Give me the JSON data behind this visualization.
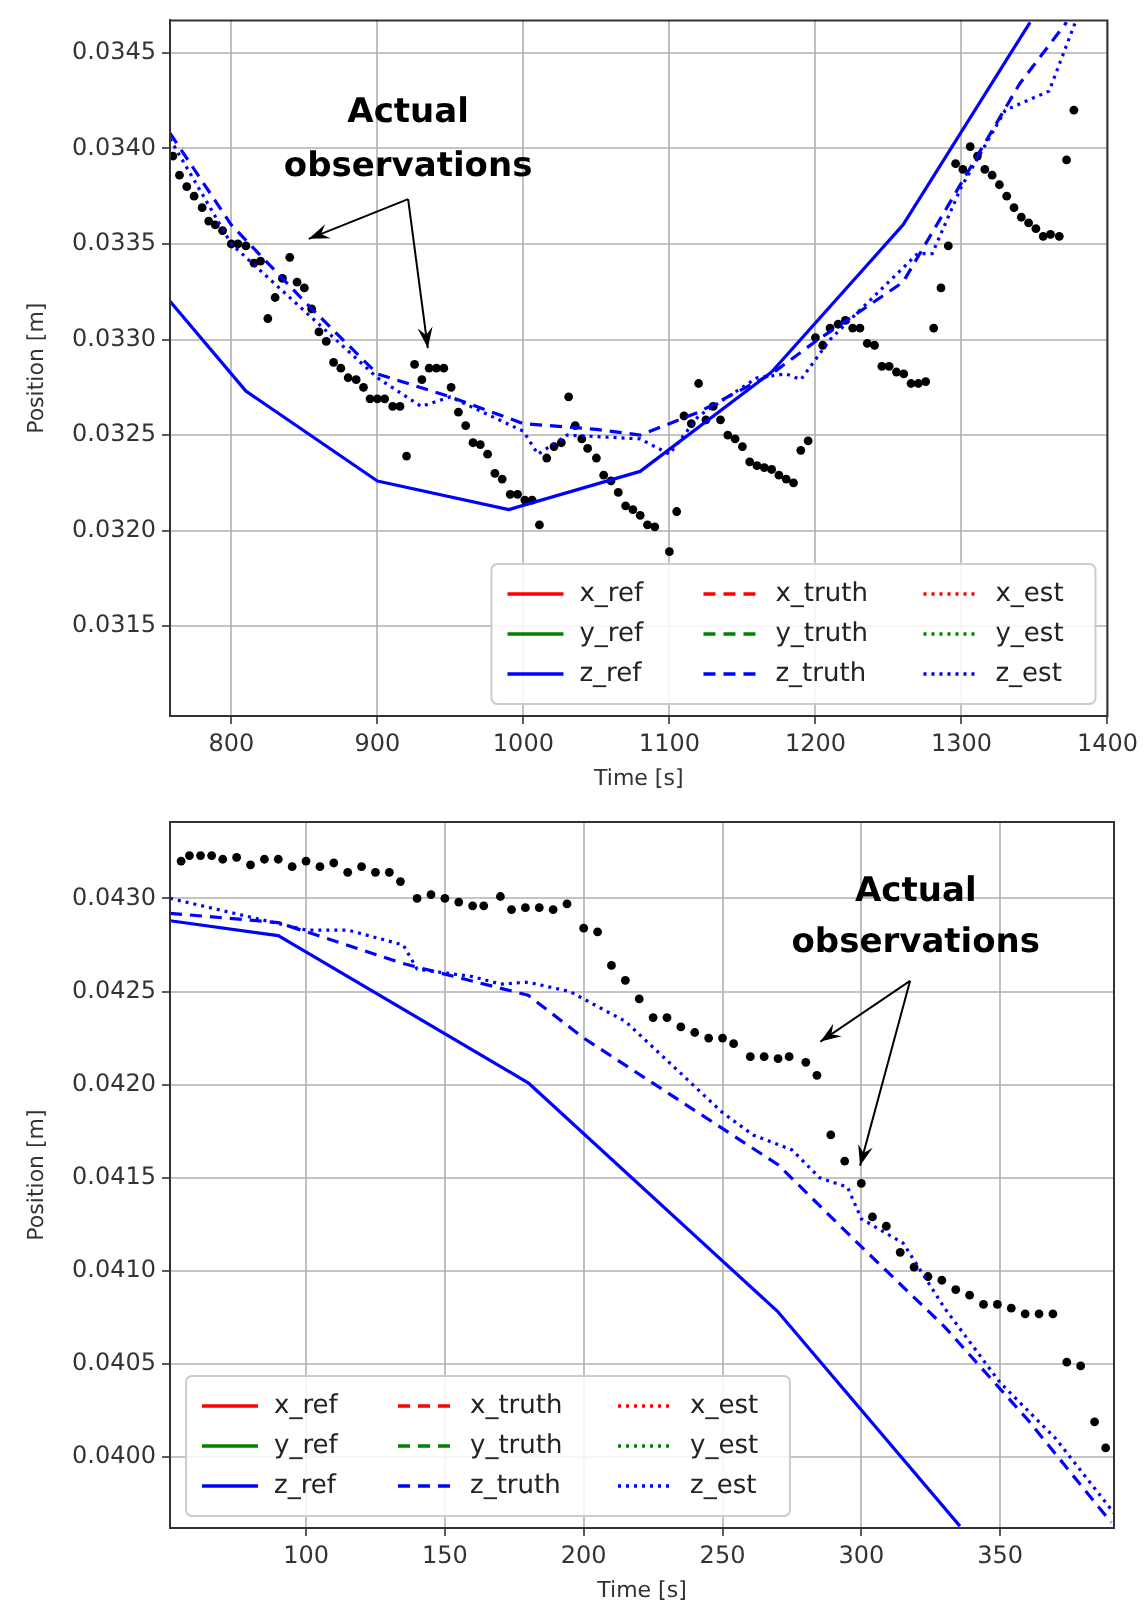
{
  "chart_data": [
    {
      "type": "line",
      "xlabel": "Time [s]",
      "ylabel": "Position [m]",
      "xlim": [
        758,
        1400
      ],
      "xticks": [
        800,
        900,
        1000,
        1100,
        1200,
        1300,
        1400
      ],
      "ylim": [
        0.03103,
        0.03467
      ],
      "yticks": [
        {
          "value": 0.0315,
          "label": "0.0315"
        },
        {
          "value": 0.032,
          "label": "0.0320"
        },
        {
          "value": 0.0325,
          "label": "0.0325"
        },
        {
          "value": 0.033,
          "label": "0.0330"
        },
        {
          "value": 0.0335,
          "label": "0.0335"
        },
        {
          "value": 0.034,
          "label": "0.0340"
        },
        {
          "value": 0.0345,
          "label": "0.0345"
        }
      ],
      "grid": true,
      "legend": "lower right",
      "annotations": [
        "Actual observations"
      ],
      "series": [
        {
          "name": "x_ref",
          "color": "#ff0000",
          "line_style": "solid",
          "marker": "none"
        },
        {
          "name": "y_ref",
          "color": "#008000",
          "line_style": "solid",
          "marker": "none"
        },
        {
          "name": "z_ref",
          "color": "#0000ff",
          "line_style": "solid",
          "marker": "none",
          "x": [
            758,
            810,
            900,
            990,
            1080,
            1170,
            1260,
            1347
          ],
          "values": [
            0.0332,
            0.03273,
            0.03226,
            0.03211,
            0.03231,
            0.03283,
            0.0336,
            0.03466
          ]
        },
        {
          "name": "x_truth",
          "color": "#ff0000",
          "line_style": "dashed",
          "marker": "none"
        },
        {
          "name": "y_truth",
          "color": "#008000",
          "line_style": "dashed",
          "marker": "none"
        },
        {
          "name": "z_truth",
          "color": "#0000ff",
          "line_style": "dashed",
          "marker": "none",
          "x": [
            758,
            800,
            850,
            900,
            950,
            1000,
            1050,
            1080,
            1120,
            1170,
            1200,
            1260,
            1300,
            1340,
            1372
          ],
          "values": [
            0.03408,
            0.0336,
            0.0332,
            0.03282,
            0.0327,
            0.03256,
            0.03253,
            0.0325,
            0.03262,
            0.03282,
            0.03299,
            0.0333,
            0.03382,
            0.03434,
            0.03466
          ]
        },
        {
          "name": "x_est",
          "color": "#ff0000",
          "line_style": "dotted",
          "marker": "none"
        },
        {
          "name": "y_est",
          "color": "#008000",
          "line_style": "dotted",
          "marker": "none"
        },
        {
          "name": "z_est",
          "color": "#0000ff",
          "line_style": "dotted",
          "marker": "none",
          "x": [
            758,
            800,
            850,
            900,
            920,
            930,
            950,
            1000,
            1010,
            1030,
            1080,
            1100,
            1120,
            1160,
            1180,
            1190,
            1210,
            1250,
            1270,
            1280,
            1300,
            1330,
            1360,
            1378
          ],
          "values": [
            0.03405,
            0.0335,
            0.03315,
            0.0328,
            0.0327,
            0.03265,
            0.0327,
            0.03252,
            0.0324,
            0.0325,
            0.03248,
            0.0324,
            0.0326,
            0.0328,
            0.03282,
            0.03279,
            0.033,
            0.0333,
            0.03345,
            0.03345,
            0.0338,
            0.0342,
            0.0343,
            0.03466
          ]
        },
        {
          "type": "scatter",
          "color": "#000000",
          "marker": "circle",
          "x": [
            760,
            764.5,
            769.5,
            774.5,
            780,
            784.5,
            789,
            794,
            800,
            804.5,
            810,
            815.5,
            820,
            825,
            830,
            835,
            840,
            845,
            850,
            855,
            860,
            865,
            870,
            875,
            880,
            885.5,
            890.5,
            895,
            900,
            905,
            910.5,
            915.5,
            920,
            925.5,
            930.5,
            935.5,
            940.5,
            945.5,
            950.5,
            955.5,
            960.5,
            965.5,
            970.5,
            975.5,
            980.5,
            985.5,
            991,
            996,
            1001,
            1006,
            1011,
            1016,
            1021,
            1026,
            1031,
            1035.5,
            1040,
            1044,
            1050,
            1055,
            1060,
            1065,
            1070,
            1075,
            1080,
            1085,
            1090,
            1100,
            1105,
            1110,
            1115,
            1120,
            1125,
            1130,
            1135,
            1140,
            1145,
            1150,
            1155,
            1160,
            1165,
            1170,
            1175,
            1180,
            1185,
            1190,
            1195,
            1200,
            1205,
            1210,
            1215.5,
            1220.5,
            1225.5,
            1230.5,
            1235.5,
            1240.5,
            1245.5,
            1250.5,
            1255.5,
            1260.5,
            1265.5,
            1270.5,
            1275.5,
            1281,
            1286,
            1291,
            1296,
            1301,
            1306,
            1311,
            1316,
            1321,
            1326,
            1331,
            1336,
            1341,
            1346,
            1351,
            1356,
            1361,
            1367,
            1372,
            1377
          ],
          "values": [
            0.03396,
            0.03386,
            0.0338,
            0.03375,
            0.03369,
            0.03362,
            0.0336,
            0.03357,
            0.0335,
            0.0335,
            0.03349,
            0.0334,
            0.03341,
            0.03311,
            0.03322,
            0.03332,
            0.03343,
            0.0333,
            0.03327,
            0.03316,
            0.03304,
            0.03299,
            0.03288,
            0.03285,
            0.0328,
            0.03279,
            0.03275,
            0.03269,
            0.03269,
            0.03269,
            0.03265,
            0.03265,
            0.03239,
            0.03287,
            0.03279,
            0.03285,
            0.03285,
            0.03285,
            0.03275,
            0.03262,
            0.03255,
            0.03246,
            0.03245,
            0.0324,
            0.0323,
            0.03227,
            0.03219,
            0.03219,
            0.03216,
            0.03216,
            0.03203,
            0.03238,
            0.03244,
            0.03246,
            0.0327,
            0.03255,
            0.03248,
            0.03243,
            0.03238,
            0.03229,
            0.03226,
            0.0322,
            0.03213,
            0.03211,
            0.03208,
            0.03203,
            0.03202,
            0.03189,
            0.0321,
            0.0326,
            0.03256,
            0.03277,
            0.03258,
            0.03265,
            0.03258,
            0.0325,
            0.03248,
            0.03244,
            0.03236,
            0.03234,
            0.03233,
            0.03232,
            0.03229,
            0.03227,
            0.03225,
            0.03242,
            0.03247,
            0.03301,
            0.03297,
            0.03306,
            0.03308,
            0.0331,
            0.03306,
            0.03306,
            0.03298,
            0.03297,
            0.03286,
            0.03286,
            0.03283,
            0.03282,
            0.03277,
            0.03277,
            0.03278,
            0.03306,
            0.03327,
            0.03349,
            0.03392,
            0.03389,
            0.03401,
            0.03396,
            0.03389,
            0.03386,
            0.03381,
            0.03375,
            0.03369,
            0.03364,
            0.03361,
            0.03358,
            0.03354,
            0.03355,
            0.03354,
            0.03394,
            0.0342
          ]
        }
      ]
    },
    {
      "type": "line",
      "xlabel": "Time [s]",
      "ylabel": "Position [m]",
      "xlim": [
        51,
        391
      ],
      "xticks": [
        100,
        150,
        200,
        250,
        300,
        350
      ],
      "ylim": [
        0.03962,
        0.04341
      ],
      "yticks": [
        {
          "value": 0.04,
          "label": "0.0400"
        },
        {
          "value": 0.0405,
          "label": "0.0405"
        },
        {
          "value": 0.041,
          "label": "0.0410"
        },
        {
          "value": 0.0415,
          "label": "0.0415"
        },
        {
          "value": 0.042,
          "label": "0.0420"
        },
        {
          "value": 0.0425,
          "label": "0.0425"
        },
        {
          "value": 0.043,
          "label": "0.0430"
        }
      ],
      "grid": true,
      "legend": "lower left",
      "annotations": [
        "Actual observations"
      ],
      "series": [
        {
          "name": "x_ref",
          "color": "#ff0000",
          "line_style": "solid",
          "marker": "none"
        },
        {
          "name": "y_ref",
          "color": "#008000",
          "line_style": "solid",
          "marker": "none"
        },
        {
          "name": "z_ref",
          "color": "#0000ff",
          "line_style": "solid",
          "marker": "none",
          "x": [
            51,
            90,
            180,
            270,
            335.5
          ],
          "values": [
            0.04288,
            0.0428,
            0.04201,
            0.04078,
            0.03963
          ]
        },
        {
          "name": "x_truth",
          "color": "#ff0000",
          "line_style": "dashed",
          "marker": "none"
        },
        {
          "name": "y_truth",
          "color": "#008000",
          "line_style": "dashed",
          "marker": "none"
        },
        {
          "name": "z_truth",
          "color": "#0000ff",
          "line_style": "dashed",
          "marker": "none",
          "x": [
            51,
            90,
            135,
            180,
            200,
            270,
            300,
            330,
            360,
            390
          ],
          "values": [
            0.04292,
            0.04287,
            0.04265,
            0.04248,
            0.04225,
            0.04157,
            0.04113,
            0.0407,
            0.0402,
            0.03965
          ]
        },
        {
          "name": "x_est",
          "color": "#ff0000",
          "line_style": "dotted",
          "marker": "none"
        },
        {
          "name": "y_est",
          "color": "#008000",
          "line_style": "dotted",
          "marker": "none"
        },
        {
          "name": "z_est",
          "color": "#0000ff",
          "line_style": "dotted",
          "marker": "none",
          "x": [
            51,
            100,
            115,
            135,
            140,
            160,
            170,
            180,
            195,
            215,
            250,
            261,
            275,
            285,
            295,
            300,
            315,
            330,
            350,
            370,
            391
          ],
          "values": [
            0.043,
            0.04283,
            0.04283,
            0.04275,
            0.04262,
            0.04258,
            0.04254,
            0.04255,
            0.0425,
            0.04234,
            0.04185,
            0.04173,
            0.04165,
            0.0415,
            0.04145,
            0.04128,
            0.04115,
            0.0408,
            0.0404,
            0.0401,
            0.0397
          ]
        },
        {
          "type": "scatter",
          "color": "#000000",
          "marker": "circle",
          "x": [
            55,
            58,
            62,
            66,
            70,
            75,
            80,
            85,
            90,
            95,
            100,
            105,
            110,
            115,
            120,
            125,
            130,
            134,
            140,
            145,
            150,
            155,
            160,
            164,
            170,
            174,
            179,
            184,
            189,
            194,
            200,
            205,
            210,
            215,
            220,
            225,
            230,
            235,
            240,
            245,
            250,
            254,
            260,
            265,
            270,
            274,
            280,
            284,
            289,
            294,
            300,
            304,
            309,
            314,
            319,
            324,
            329,
            334,
            339,
            344,
            349,
            354,
            359,
            364,
            369,
            374,
            379,
            384,
            388
          ],
          "values": [
            0.0432,
            0.04323,
            0.04323,
            0.04323,
            0.04321,
            0.04322,
            0.04318,
            0.04321,
            0.04321,
            0.04317,
            0.0432,
            0.04317,
            0.04319,
            0.04314,
            0.04317,
            0.04314,
            0.04314,
            0.04309,
            0.043,
            0.04302,
            0.043,
            0.04298,
            0.04296,
            0.04296,
            0.04301,
            0.04294,
            0.04295,
            0.04295,
            0.04294,
            0.04297,
            0.04284,
            0.04282,
            0.04264,
            0.04256,
            0.04246,
            0.04236,
            0.04236,
            0.04231,
            0.04228,
            0.04225,
            0.04225,
            0.04222,
            0.04215,
            0.04215,
            0.04214,
            0.04215,
            0.04212,
            0.04205,
            0.04173,
            0.04159,
            0.04147,
            0.04129,
            0.04124,
            0.0411,
            0.04102,
            0.04097,
            0.04095,
            0.0409,
            0.04087,
            0.04082,
            0.04082,
            0.0408,
            0.04077,
            0.04077,
            0.04077,
            0.04051,
            0.04049,
            0.04019,
            0.04005
          ]
        }
      ]
    }
  ]
}
